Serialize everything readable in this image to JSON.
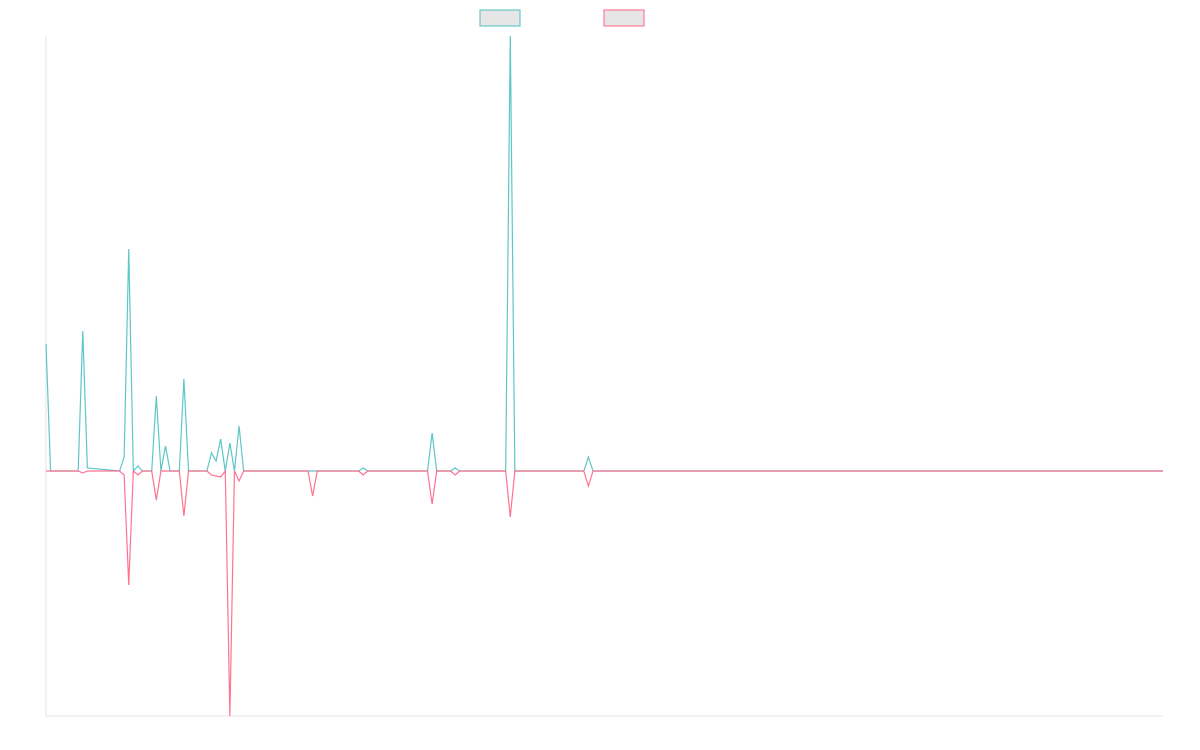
{
  "chart_data": {
    "type": "line",
    "x": [
      0,
      1,
      7,
      8,
      9,
      16,
      17,
      18,
      19,
      20,
      21,
      23,
      24,
      25,
      26,
      27,
      29,
      30,
      31,
      35,
      36,
      37,
      38,
      39,
      40,
      41,
      42,
      43,
      57,
      58,
      59,
      68,
      69,
      70,
      83,
      84,
      85,
      88,
      89,
      90,
      100,
      101,
      102,
      117,
      118,
      119,
      243
    ],
    "series": [
      {
        "color": "#4bc0c0",
        "values": [
          127,
          0,
          0,
          140,
          3,
          0,
          14,
          222,
          0,
          5,
          0,
          0,
          75,
          0,
          25,
          0,
          0,
          92,
          0,
          0,
          18,
          10,
          32,
          0,
          28,
          0,
          45,
          0,
          0,
          0,
          0,
          0,
          3,
          0,
          0,
          38,
          0,
          0,
          3,
          0,
          0,
          435,
          0,
          0,
          14,
          0,
          0
        ]
      },
      {
        "color": "#ff6384",
        "values": [
          0,
          0,
          0,
          -2,
          0,
          0,
          -4,
          -114,
          0,
          -4,
          0,
          0,
          -29,
          0,
          0,
          0,
          0,
          -45,
          0,
          0,
          -4,
          -5,
          -6,
          0,
          -245,
          0,
          -10,
          0,
          0,
          -25,
          0,
          0,
          -4,
          0,
          0,
          -33,
          0,
          0,
          -4,
          0,
          0,
          -46,
          0,
          0,
          -15,
          0,
          0
        ]
      }
    ],
    "xlim": [
      0,
      243
    ],
    "ylim": [
      -245,
      435
    ]
  }
}
